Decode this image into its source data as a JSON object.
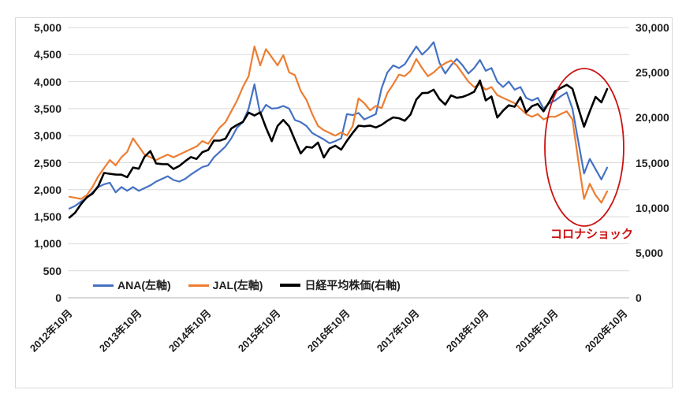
{
  "chart": {
    "legend": {
      "items": [
        {
          "label": "ANA(左軸)",
          "color": "#4472C4"
        },
        {
          "label": "JAL(左軸)",
          "color": "#ED7D31"
        },
        {
          "label": "日経平均株価(右軸)",
          "color": "#000000"
        }
      ]
    },
    "annotation": {
      "label": "コロナショック",
      "color": "#CC1111"
    },
    "colors": {
      "gridline": "#D9D9D9",
      "axis_line": "#BFBFBF",
      "background": "#FFFFFF",
      "figure_border": "#D9D9D9"
    }
  },
  "chart_data": {
    "type": "line",
    "title": "",
    "xlabel": "",
    "ylabel_left": "",
    "ylabel_right": "",
    "grid": true,
    "legend_position": "bottom-inside",
    "x_interval": "monthly",
    "x_first_point": "2012年10月",
    "x_last_point": "2020年7月",
    "x_tick_labels": [
      "2012年10月",
      "2013年10月",
      "2014年10月",
      "2015年10月",
      "2016年10月",
      "2017年10月",
      "2018年10月",
      "2019年10月",
      "2020年10月"
    ],
    "left_axis": {
      "min": 0,
      "max": 5000,
      "step": 500,
      "tick_labels": [
        "0",
        "500",
        "1,000",
        "1,500",
        "2,000",
        "2,500",
        "3,000",
        "3,500",
        "4,000",
        "4,500",
        "5,000"
      ]
    },
    "right_axis": {
      "min": 0,
      "max": 30000,
      "step": 5000,
      "tick_labels": [
        "0",
        "5,000",
        "10,000",
        "15,000",
        "20,000",
        "25,000",
        "30,000"
      ]
    },
    "series": [
      {
        "name": "ANA(左軸)",
        "axis": "left",
        "color": "#4472C4",
        "width": 2.2,
        "values": [
          1650,
          1700,
          1780,
          1850,
          1950,
          2050,
          2100,
          2130,
          1950,
          2050,
          1980,
          2050,
          1980,
          2030,
          2080,
          2150,
          2200,
          2250,
          2180,
          2150,
          2200,
          2280,
          2350,
          2420,
          2450,
          2600,
          2700,
          2800,
          2950,
          3150,
          3250,
          3500,
          3950,
          3400,
          3570,
          3500,
          3510,
          3550,
          3500,
          3290,
          3250,
          3180,
          3050,
          2990,
          2930,
          2860,
          2900,
          2950,
          3400,
          3380,
          3420,
          3300,
          3350,
          3400,
          3880,
          4170,
          4300,
          4250,
          4320,
          4490,
          4650,
          4500,
          4600,
          4730,
          4350,
          4150,
          4300,
          4420,
          4300,
          4150,
          4250,
          4400,
          4200,
          4250,
          4000,
          3900,
          4000,
          3850,
          3900,
          3700,
          3650,
          3700,
          3500,
          3600,
          3650,
          3730,
          3800,
          3500,
          2900,
          2300,
          2570,
          2380,
          2190,
          2410
        ]
      },
      {
        "name": "JAL(左軸)",
        "axis": "left",
        "color": "#ED7D31",
        "width": 2.2,
        "values": [
          1870,
          1850,
          1830,
          1900,
          2050,
          2250,
          2400,
          2550,
          2450,
          2600,
          2700,
          2950,
          2800,
          2650,
          2600,
          2550,
          2600,
          2650,
          2600,
          2650,
          2700,
          2750,
          2800,
          2900,
          2850,
          3000,
          3150,
          3250,
          3450,
          3650,
          3900,
          4100,
          4650,
          4300,
          4600,
          4450,
          4300,
          4490,
          4170,
          4120,
          3830,
          3660,
          3400,
          3180,
          3100,
          3050,
          3000,
          3060,
          3000,
          3180,
          3690,
          3600,
          3470,
          3550,
          3510,
          3790,
          3950,
          4130,
          4100,
          4200,
          4420,
          4250,
          4100,
          4170,
          4270,
          4340,
          4390,
          4300,
          4150,
          4000,
          3900,
          3950,
          3850,
          3900,
          3750,
          3700,
          3650,
          3600,
          3500,
          3400,
          3350,
          3400,
          3300,
          3350,
          3350,
          3400,
          3450,
          3300,
          2550,
          1830,
          2110,
          1900,
          1760,
          1970
        ]
      },
      {
        "name": "日経平均株価(右軸)",
        "axis": "right",
        "color": "#000000",
        "width": 2.6,
        "values": [
          8900,
          9450,
          10400,
          11140,
          11560,
          12400,
          13860,
          13770,
          13680,
          13670,
          13390,
          14460,
          14330,
          15660,
          16290,
          14910,
          14840,
          14830,
          14300,
          14630,
          15160,
          15620,
          15420,
          16170,
          16410,
          17460,
          17450,
          17670,
          18800,
          19200,
          19520,
          20560,
          20240,
          20590,
          18890,
          17390,
          19080,
          19750,
          19030,
          17520,
          16030,
          16760,
          16670,
          17230,
          15580,
          16570,
          16890,
          16450,
          17430,
          18310,
          19110,
          19040,
          19120,
          18910,
          19200,
          19650,
          20030,
          19930,
          19650,
          20360,
          22010,
          22720,
          22760,
          23100,
          22070,
          21450,
          22470,
          22200,
          22300,
          22550,
          22870,
          24120,
          21920,
          22350,
          20010,
          20770,
          21380,
          21210,
          22260,
          20600,
          21280,
          21520,
          20700,
          21760,
          22930,
          23300,
          23650,
          23200,
          21100,
          19000,
          20700,
          22300,
          21700,
          23180
        ]
      }
    ],
    "annotation_ellipse": {
      "label": "コロナショック",
      "over": "2019年末〜2020年"
    }
  }
}
